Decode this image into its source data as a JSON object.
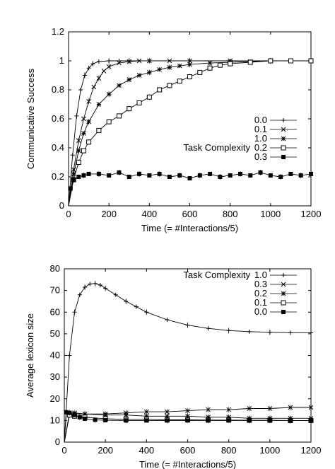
{
  "chart_data": [
    {
      "type": "line",
      "xlabel": "Time (= #Interactions/5)",
      "ylabel": "Communicative Success",
      "xlim": [
        0,
        1200
      ],
      "ylim": [
        0,
        1.2
      ],
      "xticks": [
        0,
        200,
        400,
        600,
        800,
        1000,
        1200
      ],
      "xtick_labels": [
        "0",
        "200",
        "400",
        "600",
        "800",
        "1000",
        "1200"
      ],
      "yticks": [
        0,
        0.2,
        0.4,
        0.6,
        0.8,
        1,
        1.2
      ],
      "ytick_labels": [
        "0",
        "0.2",
        "0.4",
        "0.6",
        "0.8",
        "1",
        "1.2"
      ],
      "grid": false,
      "legend_position": "center-right",
      "legend_title": "Task Complexity",
      "series": [
        {
          "name": "0.0",
          "marker": "plus",
          "x": [
            0,
            20,
            40,
            60,
            80,
            100,
            120,
            150,
            200,
            250,
            300,
            400,
            600,
            800,
            1000,
            1200
          ],
          "y": [
            0,
            0.35,
            0.62,
            0.8,
            0.9,
            0.95,
            0.98,
            0.995,
            1.0,
            1.0,
            1.0,
            1.0,
            1.0,
            1.0,
            1.0,
            1.0
          ]
        },
        {
          "name": "0.1",
          "marker": "x",
          "x": [
            0,
            25,
            50,
            75,
            100,
            125,
            150,
            175,
            200,
            250,
            300,
            350,
            400,
            500,
            600,
            800,
            1000,
            1200
          ],
          "y": [
            0,
            0.25,
            0.45,
            0.6,
            0.72,
            0.82,
            0.88,
            0.93,
            0.96,
            0.985,
            0.995,
            1.0,
            1.0,
            1.0,
            1.0,
            1.0,
            1.0,
            1.0
          ]
        },
        {
          "name": "1.0",
          "marker": "star",
          "x": [
            0,
            25,
            50,
            75,
            100,
            150,
            200,
            250,
            300,
            350,
            400,
            450,
            500,
            550,
            600,
            700,
            800,
            900,
            1000,
            1100,
            1200
          ],
          "y": [
            0,
            0.22,
            0.38,
            0.5,
            0.58,
            0.7,
            0.77,
            0.83,
            0.87,
            0.9,
            0.92,
            0.94,
            0.955,
            0.965,
            0.975,
            0.985,
            0.99,
            0.995,
            1.0,
            1.0,
            1.0
          ]
        },
        {
          "name": "0.2",
          "marker": "open-square",
          "x": [
            0,
            25,
            50,
            75,
            100,
            150,
            200,
            250,
            300,
            350,
            400,
            450,
            500,
            550,
            600,
            650,
            700,
            750,
            800,
            900,
            1000,
            1100,
            1200
          ],
          "y": [
            0,
            0.18,
            0.3,
            0.38,
            0.44,
            0.52,
            0.58,
            0.62,
            0.67,
            0.71,
            0.75,
            0.8,
            0.83,
            0.86,
            0.89,
            0.92,
            0.95,
            0.97,
            0.98,
            0.99,
            1.0,
            1.0,
            1.0
          ]
        },
        {
          "name": "0.3",
          "marker": "filled-square",
          "x": [
            0,
            10,
            25,
            50,
            75,
            100,
            150,
            200,
            250,
            300,
            350,
            400,
            450,
            500,
            550,
            600,
            650,
            700,
            750,
            800,
            850,
            900,
            950,
            1000,
            1050,
            1100,
            1150,
            1200
          ],
          "y": [
            0,
            0.12,
            0.18,
            0.2,
            0.21,
            0.22,
            0.22,
            0.21,
            0.23,
            0.2,
            0.22,
            0.21,
            0.22,
            0.2,
            0.21,
            0.19,
            0.21,
            0.22,
            0.2,
            0.21,
            0.22,
            0.21,
            0.23,
            0.21,
            0.2,
            0.22,
            0.21,
            0.22
          ]
        }
      ]
    },
    {
      "type": "line",
      "xlabel": "Time (= #Interactions/5)",
      "ylabel": "Average lexicon size",
      "xlim": [
        0,
        1200
      ],
      "ylim": [
        0,
        80
      ],
      "xticks": [
        0,
        200,
        400,
        600,
        800,
        1000,
        1200
      ],
      "xtick_labels": [
        "0",
        "200",
        "400",
        "600",
        "800",
        "1000",
        "1200"
      ],
      "yticks": [
        0,
        10,
        20,
        30,
        40,
        50,
        60,
        70,
        80
      ],
      "ytick_labels": [
        "0",
        "10",
        "20",
        "30",
        "40",
        "50",
        "60",
        "70",
        "80"
      ],
      "grid": false,
      "legend_position": "top-right",
      "legend_title": "Task Complexity",
      "series": [
        {
          "name": "1.0",
          "marker": "plus",
          "x": [
            0,
            25,
            50,
            75,
            100,
            125,
            150,
            175,
            200,
            250,
            300,
            350,
            400,
            500,
            600,
            700,
            800,
            900,
            1000,
            1100,
            1200
          ],
          "y": [
            0,
            40,
            60,
            68,
            71.5,
            73,
            73.2,
            72.5,
            71,
            68,
            65,
            62.5,
            60,
            56.5,
            54,
            52.5,
            51.5,
            51,
            50.7,
            50.5,
            50.5
          ]
        },
        {
          "name": "0.3",
          "marker": "x",
          "x": [
            0,
            25,
            50,
            100,
            200,
            300,
            400,
            500,
            600,
            700,
            800,
            900,
            1000,
            1100,
            1200
          ],
          "y": [
            0,
            13.5,
            13.5,
            13,
            13,
            13.5,
            14,
            14,
            14.5,
            15,
            15,
            15.5,
            15.5,
            16,
            16
          ]
        },
        {
          "name": "0.2",
          "marker": "star",
          "x": [
            0,
            25,
            50,
            100,
            200,
            300,
            400,
            500,
            600,
            700,
            800,
            900,
            1000,
            1100,
            1200
          ],
          "y": [
            0,
            13,
            13,
            13,
            12.5,
            12.5,
            12,
            12,
            12,
            11.5,
            11.5,
            11,
            11,
            11,
            11
          ]
        },
        {
          "name": "0.1",
          "marker": "open-square",
          "x": [
            0,
            25,
            50,
            100,
            200,
            300,
            400,
            500,
            600,
            700,
            800,
            900,
            1000,
            1100,
            1200
          ],
          "y": [
            0,
            12.5,
            12,
            11.5,
            10.8,
            10.5,
            10.5,
            10.3,
            10.3,
            10.2,
            10.2,
            10.1,
            10.1,
            10,
            10
          ]
        },
        {
          "name": "0.0",
          "marker": "filled-square",
          "x": [
            0,
            10,
            25,
            50,
            75,
            100,
            150,
            200,
            300,
            400,
            500,
            600,
            700,
            800,
            900,
            1000,
            1100,
            1200
          ],
          "y": [
            0,
            13.8,
            13.5,
            12.5,
            11.5,
            10.8,
            10.3,
            10.1,
            10,
            10,
            10,
            10,
            10,
            10,
            10,
            10,
            10,
            10
          ]
        }
      ]
    }
  ]
}
